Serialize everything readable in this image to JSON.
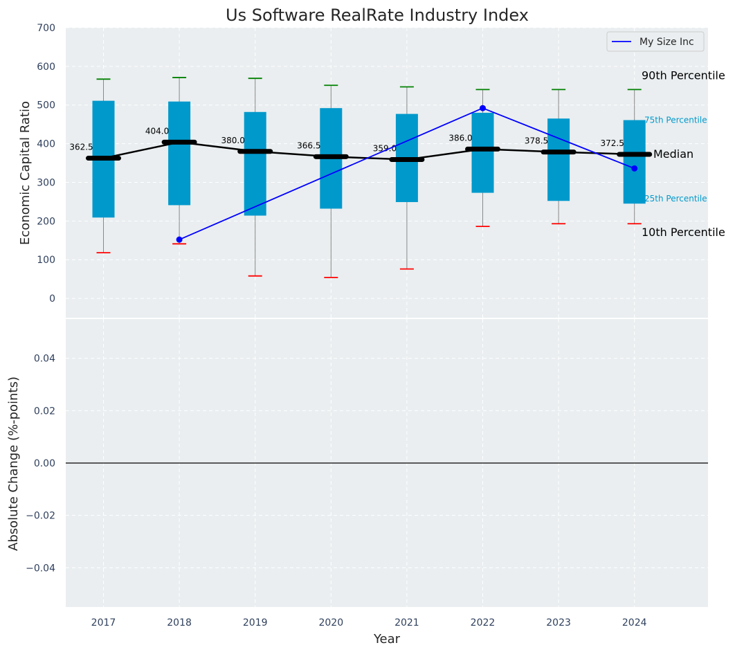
{
  "chart_data": [
    {
      "type": "box",
      "title": "Us Software RealRate Industry Index",
      "ylabel": "Economic Capital Ratio",
      "xlabel": "",
      "ylim": [
        -50,
        700
      ],
      "yticks": [
        0,
        100,
        200,
        300,
        400,
        500,
        600,
        700
      ],
      "grid": true,
      "categories": [
        "2017",
        "2018",
        "2019",
        "2020",
        "2021",
        "2022",
        "2023",
        "2024"
      ],
      "series": [
        {
          "name": "90th Percentile",
          "values": [
            567,
            571,
            569,
            551,
            547,
            540,
            540,
            540
          ]
        },
        {
          "name": "75th Percentile",
          "values": [
            511,
            509,
            482,
            492,
            477,
            480,
            465,
            461
          ]
        },
        {
          "name": "Median",
          "values": [
            362.5,
            404.0,
            380.0,
            366.5,
            359.0,
            386.0,
            378.5,
            372.5
          ]
        },
        {
          "name": "25th Percentile",
          "values": [
            209,
            241,
            214,
            232,
            249,
            273,
            252,
            245
          ]
        },
        {
          "name": "10th Percentile",
          "values": [
            118,
            141,
            58,
            54,
            76,
            186,
            193,
            193
          ]
        },
        {
          "name": "My Size Inc",
          "values": [
            null,
            152,
            null,
            null,
            null,
            492,
            null,
            336
          ]
        }
      ],
      "median_labels": [
        "362.5",
        "404.0",
        "380.0",
        "366.5",
        "359.0",
        "386.0",
        "378.5",
        "372.5"
      ],
      "legend": {
        "placement": "top-right",
        "entries": [
          "My Size Inc"
        ]
      },
      "annotations": {
        "p90": "90th Percentile",
        "p75": "75th Percentile",
        "median": "Median",
        "p25": "25th Percentile",
        "p10": "10th Percentile"
      },
      "colors": {
        "box": "#0099cc",
        "median": "#000000",
        "whisker": "#888888",
        "p90_cap": "#008000",
        "p10_cap": "#ff0000",
        "company": "#0000ff",
        "background": "#eaeef0",
        "p75_label": "#0099cc"
      }
    },
    {
      "type": "line",
      "title": "",
      "ylabel": "Absolute Change (%-points)",
      "xlabel": "Year",
      "ylim": [
        -0.055,
        0.055
      ],
      "yticks": [
        -0.04,
        -0.02,
        0.0,
        0.02,
        0.04
      ],
      "ytick_labels": [
        "−0.04",
        "−0.02",
        "0.00",
        "0.02",
        "0.04"
      ],
      "grid": true,
      "categories": [
        "2017",
        "2018",
        "2019",
        "2020",
        "2021",
        "2022",
        "2023",
        "2024"
      ],
      "series": [],
      "reference_line": 0
    }
  ]
}
